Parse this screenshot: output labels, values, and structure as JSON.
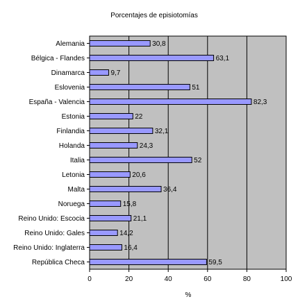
{
  "chart_data": {
    "type": "bar",
    "orientation": "horizontal",
    "title": "Porcentajes de episiotomías",
    "xlabel": "%",
    "ylabel": "",
    "xlim": [
      0,
      100
    ],
    "x_ticks": [
      0,
      20,
      40,
      60,
      80,
      100
    ],
    "grid": true,
    "legend": "none",
    "categories": [
      "Alemania",
      "Bélgica - Flandes",
      "Dinamarca",
      "Eslovenia",
      "España - Valencia",
      "Estonia",
      "Finlandia",
      "Holanda",
      "Italia",
      "Letonia",
      "Malta",
      "Noruega",
      "Reino Unido: Escocia",
      "Reino Unido: Gales",
      "Reino Unido: Inglaterra",
      "República Checa"
    ],
    "values": [
      30.8,
      63.1,
      9.7,
      51,
      82.3,
      22,
      32.1,
      24.3,
      52,
      20.6,
      36.4,
      15.8,
      21.1,
      14.2,
      16.4,
      59.5
    ],
    "value_labels": [
      "30,8",
      "63,1",
      "9,7",
      "51",
      "82,3",
      "22",
      "32,1",
      "24,3",
      "52",
      "20,6",
      "36,4",
      "15,8",
      "21,1",
      "14,2",
      "16,4",
      "59,5"
    ],
    "colors": {
      "plot_background": "#c0c0c0",
      "bar_fill": "#9999ff",
      "bar_stroke": "#000000",
      "gridline": "#000000"
    }
  }
}
